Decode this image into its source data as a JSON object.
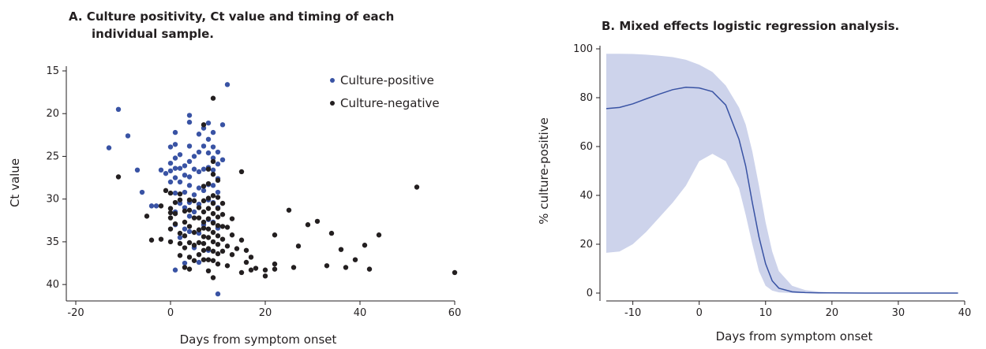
{
  "chart_data": [
    {
      "type": "scatter",
      "title_line1": "A. Culture positivity, Ct value and timing of each",
      "title_line2": "individual sample.",
      "xlabel": "Days from symptom onset",
      "ylabel": "Ct value",
      "xlim": [
        -22,
        60
      ],
      "ylim": [
        15,
        41
      ],
      "y_inverted": true,
      "xticks": [
        -20,
        0,
        20,
        40,
        60
      ],
      "yticks": [
        15,
        20,
        25,
        30,
        35,
        40
      ],
      "legend_position": "top-right",
      "series": [
        {
          "name": "Culture-positive",
          "color": "#3953a4",
          "points": [
            [
              -13,
              24
            ],
            [
              -11,
              19.5
            ],
            [
              -9,
              22.6
            ],
            [
              -7,
              26.6
            ],
            [
              -6,
              29.2
            ],
            [
              -4,
              30.8
            ],
            [
              -3,
              30.8
            ],
            [
              -2,
              26.6
            ],
            [
              -1,
              27
            ],
            [
              0,
              23.9
            ],
            [
              0,
              25.8
            ],
            [
              0,
              26.7
            ],
            [
              0,
              28
            ],
            [
              1,
              22.2
            ],
            [
              1,
              23.6
            ],
            [
              1,
              25.2
            ],
            [
              1,
              26.4
            ],
            [
              1,
              27.5
            ],
            [
              1,
              29.3
            ],
            [
              1,
              31.5
            ],
            [
              1,
              33
            ],
            [
              1,
              38.3
            ],
            [
              2,
              24.8
            ],
            [
              2,
              26.4
            ],
            [
              2,
              28
            ],
            [
              2,
              30.5
            ],
            [
              2,
              34.5
            ],
            [
              3,
              26.1
            ],
            [
              3,
              27.2
            ],
            [
              3,
              29.2
            ],
            [
              3,
              31
            ],
            [
              3,
              33.5
            ],
            [
              3,
              37.5
            ],
            [
              4,
              20.2
            ],
            [
              4,
              21
            ],
            [
              4,
              23.8
            ],
            [
              4,
              25.6
            ],
            [
              4,
              27.4
            ],
            [
              4,
              28.4
            ],
            [
              4,
              30.4
            ],
            [
              4,
              32
            ],
            [
              4,
              33.8
            ],
            [
              5,
              25
            ],
            [
              5,
              26.5
            ],
            [
              5,
              29.5
            ],
            [
              5,
              31.5
            ],
            [
              5,
              35.7
            ],
            [
              6,
              22.4
            ],
            [
              6,
              24.5
            ],
            [
              6,
              26.8
            ],
            [
              6,
              28.7
            ],
            [
              6,
              30.6
            ],
            [
              6,
              34
            ],
            [
              6,
              37.4
            ],
            [
              7,
              21.7
            ],
            [
              7,
              23.8
            ],
            [
              7,
              26.5
            ],
            [
              7,
              29
            ],
            [
              7,
              33
            ],
            [
              8,
              21.1
            ],
            [
              8,
              23
            ],
            [
              8,
              24.6
            ],
            [
              8,
              26.3
            ],
            [
              8,
              28.3
            ],
            [
              8,
              30.1
            ],
            [
              8,
              32.4
            ],
            [
              8,
              36
            ],
            [
              9,
              22.2
            ],
            [
              9,
              23.9
            ],
            [
              9,
              25.2
            ],
            [
              9,
              26.6
            ],
            [
              9,
              28.4
            ],
            [
              9,
              30.4
            ],
            [
              9,
              32.7
            ],
            [
              10,
              24.5
            ],
            [
              10,
              25.9
            ],
            [
              10,
              27.6
            ],
            [
              10,
              29.2
            ],
            [
              10,
              31
            ],
            [
              10,
              33.4
            ],
            [
              10,
              41.1
            ],
            [
              11,
              21.3
            ],
            [
              11,
              25.4
            ],
            [
              12,
              16.6
            ]
          ]
        },
        {
          "name": "Culture-negative",
          "color": "#231f20",
          "points": [
            [
              -11,
              27.4
            ],
            [
              -5,
              32
            ],
            [
              -4,
              34.8
            ],
            [
              -2,
              30.8
            ],
            [
              -2,
              34.7
            ],
            [
              -1,
              29
            ],
            [
              0,
              29.3
            ],
            [
              0,
              31.1
            ],
            [
              0,
              31.6
            ],
            [
              0,
              32.2
            ],
            [
              0,
              33.5
            ],
            [
              0,
              35
            ],
            [
              1,
              30.4
            ],
            [
              1,
              31.7
            ],
            [
              1,
              32.9
            ],
            [
              2,
              29.4
            ],
            [
              2,
              30.1
            ],
            [
              2,
              34
            ],
            [
              2,
              35.2
            ],
            [
              2,
              36.6
            ],
            [
              3,
              31.4
            ],
            [
              3,
              32.7
            ],
            [
              3,
              34.3
            ],
            [
              3,
              35.7
            ],
            [
              3,
              38
            ],
            [
              4,
              30.1
            ],
            [
              4,
              31.3
            ],
            [
              4,
              33.2
            ],
            [
              4,
              35.1
            ],
            [
              4,
              36.8
            ],
            [
              4,
              38.2
            ],
            [
              5,
              30.2
            ],
            [
              5,
              32.2
            ],
            [
              5,
              33.9
            ],
            [
              5,
              35.4
            ],
            [
              5,
              37.2
            ],
            [
              6,
              31
            ],
            [
              6,
              32.2
            ],
            [
              6,
              33.6
            ],
            [
              6,
              35.1
            ],
            [
              6,
              36.5
            ],
            [
              7,
              21.3
            ],
            [
              7,
              28.5
            ],
            [
              7,
              30.2
            ],
            [
              7,
              31.5
            ],
            [
              7,
              32.7
            ],
            [
              7,
              33.4
            ],
            [
              7,
              34.4
            ],
            [
              7,
              35.2
            ],
            [
              7,
              36
            ],
            [
              7,
              37.1
            ],
            [
              8,
              26.5
            ],
            [
              8,
              28.2
            ],
            [
              8,
              29.9
            ],
            [
              8,
              31.1
            ],
            [
              8,
              32.3
            ],
            [
              8,
              33.5
            ],
            [
              8,
              34.5
            ],
            [
              8,
              35.8
            ],
            [
              8,
              37.1
            ],
            [
              8,
              38.4
            ],
            [
              9,
              18.2
            ],
            [
              9,
              25.6
            ],
            [
              9,
              27.1
            ],
            [
              9,
              29.6
            ],
            [
              9,
              30.5
            ],
            [
              9,
              31.7
            ],
            [
              9,
              32.8
            ],
            [
              9,
              33.9
            ],
            [
              9,
              35
            ],
            [
              9,
              36.1
            ],
            [
              9,
              37.2
            ],
            [
              9,
              39.2
            ],
            [
              10,
              27.8
            ],
            [
              10,
              29.8
            ],
            [
              10,
              31.1
            ],
            [
              10,
              32.1
            ],
            [
              10,
              33.1
            ],
            [
              10,
              34.3
            ],
            [
              10,
              35.3
            ],
            [
              10,
              36.4
            ],
            [
              10,
              37.6
            ],
            [
              11,
              30.5
            ],
            [
              11,
              31.8
            ],
            [
              11,
              33.2
            ],
            [
              11,
              34.7
            ],
            [
              11,
              36.1
            ],
            [
              12,
              33.3
            ],
            [
              12,
              35.5
            ],
            [
              12,
              37.8
            ],
            [
              13,
              32.3
            ],
            [
              13,
              34.2
            ],
            [
              13,
              36.5
            ],
            [
              14,
              35.8
            ],
            [
              15,
              26.8
            ],
            [
              15,
              34.8
            ],
            [
              15,
              38.6
            ],
            [
              16,
              36
            ],
            [
              16,
              37.4
            ],
            [
              17,
              36.8
            ],
            [
              17,
              38.3
            ],
            [
              18,
              38.1
            ],
            [
              20,
              38.3
            ],
            [
              20,
              39
            ],
            [
              22,
              34.2
            ],
            [
              22,
              37.6
            ],
            [
              22,
              38.2
            ],
            [
              25,
              31.3
            ],
            [
              26,
              38
            ],
            [
              27,
              35.5
            ],
            [
              29,
              33
            ],
            [
              31,
              32.6
            ],
            [
              33,
              37.8
            ],
            [
              34,
              34
            ],
            [
              36,
              35.9
            ],
            [
              37,
              38
            ],
            [
              39,
              37.1
            ],
            [
              41,
              35.4
            ],
            [
              42,
              38.2
            ],
            [
              44,
              34.2
            ],
            [
              52,
              28.6
            ],
            [
              60,
              38.6
            ]
          ]
        }
      ]
    },
    {
      "type": "line",
      "title": "B. Mixed effects logistic regression analysis.",
      "xlabel": "Days from symptom onset",
      "ylabel": "% culture-positive",
      "xlim": [
        -14,
        40
      ],
      "ylim": [
        0,
        100
      ],
      "xticks": [
        -10,
        0,
        10,
        20,
        30,
        40
      ],
      "yticks": [
        0,
        20,
        40,
        60,
        80,
        100
      ],
      "line_color": "#3953a4",
      "band_color": "#cdd3eb",
      "x": [
        -14,
        -12,
        -10,
        -8,
        -6,
        -4,
        -2,
        0,
        2,
        4,
        6,
        7,
        8,
        9,
        10,
        11,
        12,
        14,
        16,
        18,
        20,
        25,
        30,
        35,
        39
      ],
      "fit": [
        75.5,
        76,
        77.5,
        79.5,
        81.5,
        83.3,
        84.3,
        84,
        82.5,
        77,
        63,
        52,
        37,
        23,
        12,
        5,
        2,
        0.5,
        0.2,
        0.1,
        0.1,
        0,
        0,
        0,
        0
      ],
      "lower": [
        16.5,
        17,
        20,
        25,
        31,
        37,
        44,
        54,
        57,
        54,
        43,
        32,
        20,
        9,
        3,
        1,
        0.3,
        0,
        0,
        0,
        0,
        0,
        0,
        0,
        0
      ],
      "upper": [
        98,
        98,
        97.9,
        97.6,
        97.2,
        96.6,
        95.5,
        93.5,
        90.5,
        85,
        76,
        69,
        58,
        44,
        29,
        17,
        9,
        3,
        1.2,
        0.6,
        0.3,
        0.1,
        0,
        0,
        0
      ]
    }
  ]
}
